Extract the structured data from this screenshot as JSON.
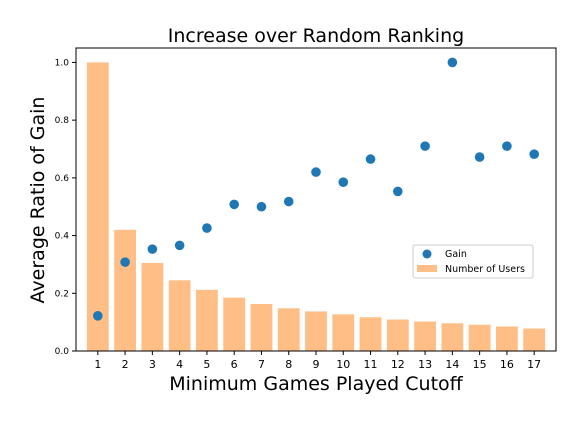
{
  "chart_data": {
    "type": "bar",
    "title": "Increase over Random Ranking",
    "xlabel": "Minimum Games Played Cutoff",
    "ylabel": "Average Ratio of Gain",
    "ylim": [
      0,
      1.05
    ],
    "xticks": [
      "1",
      "2",
      "3",
      "4",
      "5",
      "6",
      "7",
      "8",
      "9",
      "10",
      "11",
      "12",
      "13",
      "14",
      "15",
      "16",
      "17"
    ],
    "yticks": [
      "0.0",
      "0.2",
      "0.4",
      "0.6",
      "0.8",
      "1.0"
    ],
    "grid": false,
    "legend_position": "center-right",
    "series": [
      {
        "name": "Number of Users",
        "kind": "bar",
        "color": "#ffbe86",
        "x": [
          1,
          2,
          3,
          4,
          5,
          6,
          7,
          8,
          9,
          10,
          11,
          12,
          13,
          14,
          15,
          16,
          17
        ],
        "values": [
          1.0,
          0.42,
          0.305,
          0.245,
          0.212,
          0.185,
          0.163,
          0.148,
          0.137,
          0.127,
          0.117,
          0.109,
          0.102,
          0.096,
          0.091,
          0.085,
          0.078
        ]
      },
      {
        "name": "Gain",
        "kind": "scatter",
        "color": "#1f77b4",
        "x": [
          1,
          2,
          3,
          4,
          5,
          6,
          7,
          8,
          9,
          10,
          11,
          12,
          13,
          14,
          15,
          16,
          17
        ],
        "values": [
          0.122,
          0.308,
          0.353,
          0.366,
          0.426,
          0.508,
          0.5,
          0.518,
          0.62,
          0.585,
          0.665,
          0.553,
          0.71,
          1.0,
          0.672,
          0.71,
          0.682
        ]
      }
    ]
  }
}
